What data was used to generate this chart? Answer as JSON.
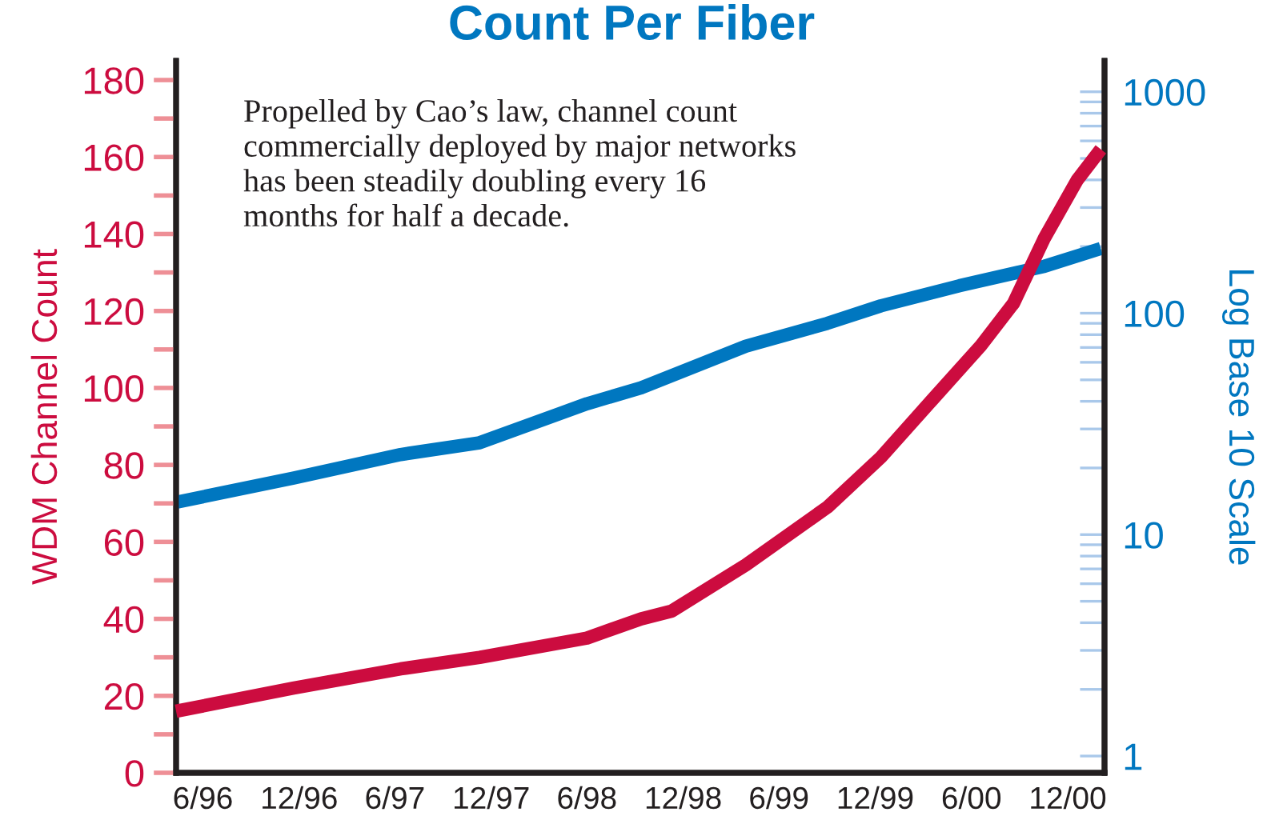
{
  "chart_data": {
    "type": "line",
    "title": "Count Per Fiber",
    "ylabel": "WDM Channel Count",
    "y2label": "Log Base 10 Scale",
    "annotations": [
      "Propelled by Cao’s law, channel count\ncommercially deployed by major networks\nhas been steadily doubling every 16\nmonths for half a decade."
    ],
    "series": [
      {
        "color": "#cc0c3f",
        "x": [
          "1996-04-11",
          "1996-11-20",
          "1997-06-12",
          "1997-11-09",
          "1998-06-01",
          "1998-09-12",
          "1998-11-09",
          "1999-03-30",
          "1999-09-01",
          "1999-12-12",
          "2000-03-19",
          "2000-06-19",
          "2000-08-20",
          "2000-10-18",
          "2000-12-19",
          "2001-02-02"
        ],
        "values": [
          16,
          22,
          27,
          30,
          35,
          40,
          42,
          54,
          69,
          82,
          97,
          111,
          122,
          139,
          154,
          162
        ]
      },
      {
        "color": "#0077c0",
        "axis": "y2",
        "x": [
          "1996-04-11",
          "1996-11-20",
          "1997-06-12",
          "1997-11-09",
          "1998-06-01",
          "1998-09-12",
          "1999-03-30",
          "1999-09-01",
          "1999-12-12",
          "2000-05-09",
          "2000-10-18",
          "2001-02-02"
        ],
        "values": [
          14,
          18,
          23,
          26,
          39,
          46,
          71,
          90,
          108,
          133,
          163,
          196
        ]
      }
    ],
    "xlim": [
      "1996-04-11",
      "2001-02-09"
    ],
    "xticks": [
      {
        "value": "1996-06",
        "label": "6/96"
      },
      {
        "value": "1996-12",
        "label": "12/96"
      },
      {
        "value": "1997-06",
        "label": "6/97"
      },
      {
        "value": "1997-12",
        "label": "12/97"
      },
      {
        "value": "1998-06",
        "label": "6/98"
      },
      {
        "value": "1998-12",
        "label": "12/98"
      },
      {
        "value": "1999-06",
        "label": "6/99"
      },
      {
        "value": "1999-12",
        "label": "12/99"
      },
      {
        "value": "2000-06",
        "label": "6/00"
      },
      {
        "value": "2000-12",
        "label": "12/00"
      }
    ],
    "ylim": [
      0,
      185
    ],
    "yticks": [
      0,
      {
        "value": 10,
        "label": null
      },
      20,
      {
        "value": 30,
        "label": null
      },
      40,
      {
        "value": 50,
        "label": null
      },
      60,
      {
        "value": 70,
        "label": null
      },
      80,
      {
        "value": 90,
        "label": null
      },
      100,
      {
        "value": 110,
        "label": null
      },
      120,
      {
        "value": 130,
        "label": null
      },
      140,
      {
        "value": 150,
        "label": null
      },
      160,
      {
        "value": 170,
        "label": null
      },
      180
    ],
    "log": "y2",
    "y2lim": [
      0.84,
      1380
    ],
    "y2ticks": [
      1,
      {
        "value": 2,
        "label": null
      },
      {
        "value": 3,
        "label": null
      },
      {
        "value": 4,
        "label": null
      },
      {
        "value": 5,
        "label": null
      },
      {
        "value": 6,
        "label": null
      },
      {
        "value": 7,
        "label": null
      },
      {
        "value": 8,
        "label": null
      },
      {
        "value": 9,
        "label": null
      },
      10,
      {
        "value": 20,
        "label": null
      },
      {
        "value": 30,
        "label": null
      },
      {
        "value": 40,
        "label": null
      },
      {
        "value": 50,
        "label": null
      },
      {
        "value": 60,
        "label": null
      },
      {
        "value": 70,
        "label": null
      },
      {
        "value": 80,
        "label": null
      },
      {
        "value": 90,
        "label": null
      },
      100,
      {
        "value": 200,
        "label": null
      },
      {
        "value": 300,
        "label": null
      },
      {
        "value": 400,
        "label": null
      },
      {
        "value": 500,
        "label": null
      },
      {
        "value": 600,
        "label": null
      },
      {
        "value": 700,
        "label": null
      },
      {
        "value": 800,
        "label": null
      },
      {
        "value": 900,
        "label": null
      },
      1000
    ],
    "grid": false,
    "marker": "none",
    "line_style": "solid"
  }
}
